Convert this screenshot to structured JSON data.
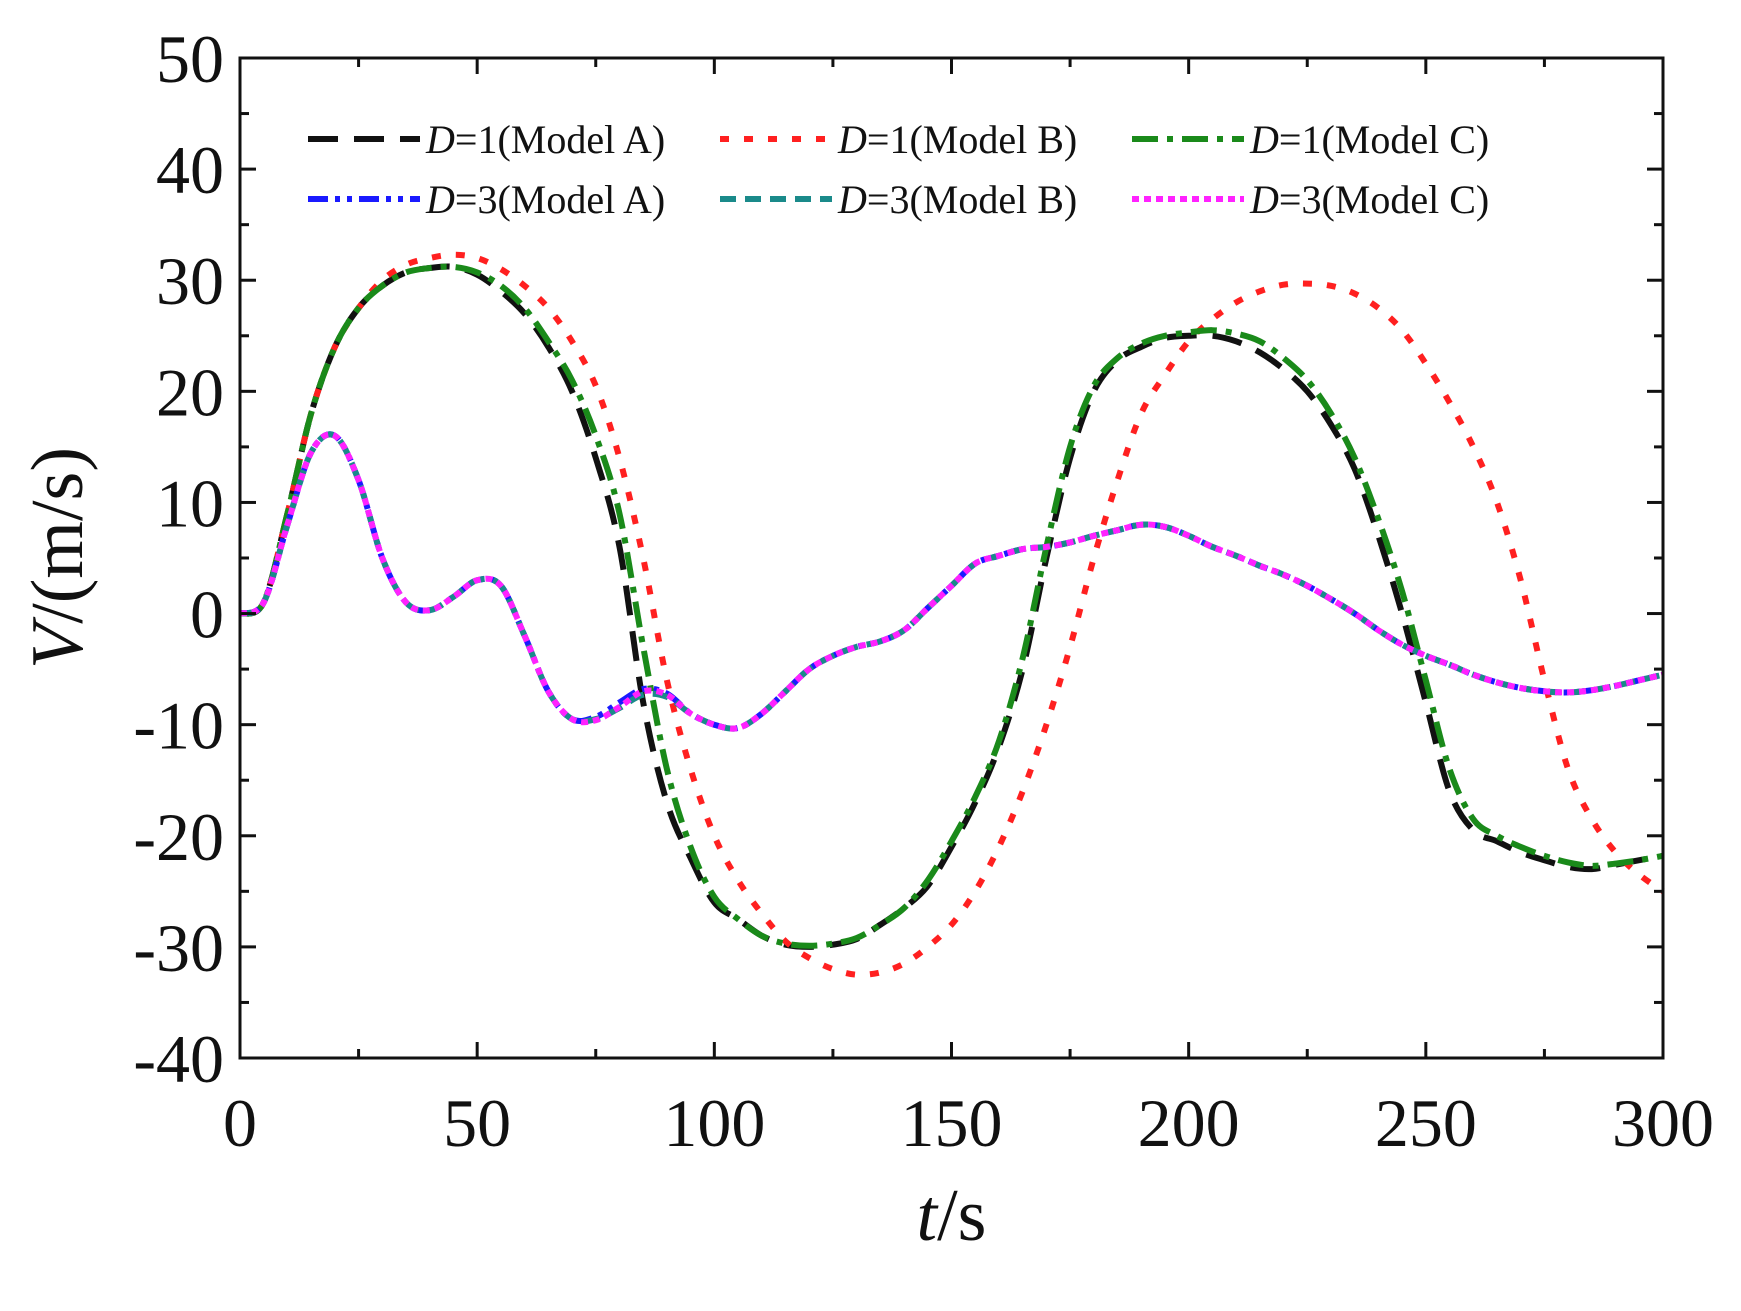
{
  "chart_data": {
    "type": "line",
    "title": "",
    "x_axis": {
      "var": "t",
      "unit": "/s",
      "lim": [
        0,
        300
      ],
      "ticks": [
        0,
        50,
        100,
        150,
        200,
        250,
        300
      ],
      "tick_labels": [
        "0",
        "50",
        "100",
        "150",
        "200",
        "250",
        "300"
      ]
    },
    "y_axis": {
      "var": "V",
      "unit": "/(m/s)",
      "lim": [
        -40,
        50
      ],
      "ticks": [
        -40,
        -30,
        -20,
        -10,
        0,
        10,
        20,
        30,
        40,
        50
      ],
      "tick_labels": [
        "-40",
        "-30",
        "-20",
        "-10",
        "0",
        "10",
        "20",
        "30",
        "40",
        "50"
      ]
    },
    "grid": false,
    "legend_position": "top",
    "series": [
      {
        "name": "D=1(Model A)",
        "legend_var": "D",
        "legend_rest": "=1(Model A)",
        "color": "#111111",
        "dash": "long-dash",
        "x": [
          0,
          5,
          10,
          15,
          20,
          25,
          30,
          35,
          40,
          45,
          50,
          55,
          60,
          65,
          70,
          75,
          80,
          85,
          90,
          95,
          100,
          105,
          110,
          115,
          120,
          125,
          130,
          135,
          140,
          145,
          150,
          155,
          160,
          165,
          170,
          175,
          180,
          185,
          190,
          195,
          200,
          205,
          210,
          215,
          220,
          225,
          230,
          235,
          240,
          245,
          250,
          255,
          260,
          265,
          270,
          275,
          280,
          285,
          290,
          295,
          300
        ],
        "y": [
          0,
          1,
          9,
          18,
          24,
          27.5,
          29.5,
          30.7,
          31.1,
          31.2,
          30.5,
          29,
          27,
          24,
          20,
          14,
          6,
          -8,
          -17,
          -22,
          -26,
          -27.5,
          -29,
          -29.8,
          -30,
          -29.8,
          -29.3,
          -28,
          -26.5,
          -24.5,
          -21,
          -17,
          -12,
          -5,
          5,
          14,
          20,
          22.8,
          24,
          24.8,
          25,
          25,
          24.5,
          23.5,
          22,
          20,
          17,
          13,
          7,
          0,
          -8,
          -16,
          -19.5,
          -20.5,
          -21.5,
          -22.2,
          -22.8,
          -23,
          -22.6,
          -22.2,
          -21.8
        ]
      },
      {
        "name": "D=1(Model B)",
        "legend_var": "D",
        "legend_rest": "=1(Model B)",
        "color": "#ff2020",
        "dash": "dots",
        "x": [
          0,
          5,
          10,
          15,
          20,
          25,
          30,
          35,
          40,
          45,
          50,
          55,
          60,
          65,
          70,
          75,
          80,
          85,
          90,
          95,
          100,
          105,
          110,
          115,
          120,
          125,
          130,
          135,
          140,
          145,
          150,
          155,
          160,
          165,
          170,
          175,
          180,
          185,
          190,
          195,
          200,
          205,
          210,
          215,
          220,
          225,
          230,
          235,
          240,
          245,
          250,
          255,
          260,
          265,
          270,
          275,
          280,
          285,
          290,
          295,
          300
        ],
        "y": [
          0,
          1,
          9,
          18,
          24,
          27.5,
          30,
          31.4,
          32,
          32.3,
          32,
          31,
          29.5,
          27.5,
          24.5,
          20.5,
          14,
          5,
          -6,
          -14,
          -20,
          -24,
          -27,
          -29.5,
          -31,
          -32,
          -32.5,
          -32.3,
          -31.5,
          -30,
          -28,
          -25,
          -21,
          -16,
          -10,
          -3,
          5,
          12,
          18,
          21.5,
          24.5,
          26.5,
          28,
          29,
          29.6,
          29.7,
          29.5,
          28.8,
          27.5,
          25.5,
          22.5,
          19,
          15,
          10,
          3,
          -6,
          -14,
          -18.5,
          -21.5,
          -23.5,
          -25
        ]
      },
      {
        "name": "D=1(Model C)",
        "legend_var": "D",
        "legend_rest": "=1(Model C)",
        "color": "#1a8a1a",
        "dash": "dash-dot",
        "x": [
          0,
          5,
          10,
          15,
          20,
          25,
          30,
          35,
          40,
          45,
          50,
          55,
          60,
          65,
          70,
          75,
          80,
          85,
          90,
          95,
          100,
          105,
          110,
          115,
          120,
          125,
          130,
          135,
          140,
          145,
          150,
          155,
          160,
          165,
          170,
          175,
          180,
          185,
          190,
          195,
          200,
          205,
          210,
          215,
          220,
          225,
          230,
          235,
          240,
          245,
          250,
          255,
          260,
          265,
          270,
          275,
          280,
          285,
          290,
          295,
          300
        ],
        "y": [
          0,
          1,
          9,
          18,
          24,
          27.5,
          29.5,
          30.7,
          31.1,
          31.2,
          30.7,
          29.5,
          27.5,
          24.5,
          21,
          16,
          9,
          -3,
          -14,
          -21,
          -25.5,
          -27.5,
          -29,
          -29.7,
          -29.9,
          -29.7,
          -29.2,
          -28,
          -26.5,
          -24,
          -20.5,
          -16.5,
          -11.5,
          -4,
          6,
          15,
          20.5,
          23,
          24.3,
          25,
          25.3,
          25.5,
          25.2,
          24.5,
          23,
          21,
          18,
          14,
          8.5,
          2,
          -6,
          -14,
          -18.5,
          -20,
          -21,
          -21.8,
          -22.4,
          -22.7,
          -22.5,
          -22.2,
          -21.8
        ]
      },
      {
        "name": "D=3(Model A)",
        "legend_var": "D",
        "legend_rest": "=3(Model A)",
        "color": "#1a1aff",
        "dash": "dash-dot-dot",
        "x": [
          0,
          5,
          10,
          15,
          20,
          25,
          30,
          35,
          40,
          45,
          50,
          55,
          60,
          65,
          70,
          75,
          80,
          85,
          90,
          95,
          100,
          105,
          110,
          115,
          120,
          125,
          130,
          135,
          140,
          145,
          150,
          155,
          160,
          165,
          170,
          175,
          180,
          185,
          190,
          195,
          200,
          205,
          210,
          215,
          220,
          225,
          230,
          235,
          240,
          245,
          250,
          255,
          260,
          265,
          270,
          275,
          280,
          285,
          290,
          295,
          300
        ],
        "y": [
          0,
          1,
          8,
          14.5,
          16,
          12,
          5,
          1,
          0.3,
          1.5,
          3,
          2.5,
          -2,
          -7,
          -9.5,
          -9.3,
          -8,
          -6.8,
          -7.2,
          -9,
          -10,
          -10.3,
          -9,
          -7,
          -5,
          -3.8,
          -3,
          -2.5,
          -1.5,
          0.5,
          2.5,
          4.5,
          5.2,
          5.8,
          6,
          6.4,
          7,
          7.5,
          8,
          7.8,
          7,
          6,
          5.2,
          4.3,
          3.5,
          2.5,
          1.3,
          0,
          -1.5,
          -2.8,
          -3.8,
          -4.6,
          -5.5,
          -6.2,
          -6.7,
          -7,
          -7.1,
          -6.9,
          -6.5,
          -6,
          -5.5
        ]
      },
      {
        "name": "D=3(Model B)",
        "legend_var": "D",
        "legend_rest": "=3(Model B)",
        "color": "#1a8a8a",
        "dash": "dash",
        "x": [
          0,
          5,
          10,
          15,
          20,
          25,
          30,
          35,
          40,
          45,
          50,
          55,
          60,
          65,
          70,
          75,
          80,
          85,
          90,
          95,
          100,
          105,
          110,
          115,
          120,
          125,
          130,
          135,
          140,
          145,
          150,
          155,
          160,
          165,
          170,
          175,
          180,
          185,
          190,
          195,
          200,
          205,
          210,
          215,
          220,
          225,
          230,
          235,
          240,
          245,
          250,
          255,
          260,
          265,
          270,
          275,
          280,
          285,
          290,
          295,
          300
        ],
        "y": [
          0,
          1,
          8,
          14.5,
          16,
          12,
          5,
          1,
          0.3,
          1.5,
          3,
          2.5,
          -2,
          -7,
          -9.5,
          -9.5,
          -8.5,
          -7.3,
          -7.5,
          -9,
          -10,
          -10.3,
          -9,
          -7,
          -5,
          -3.8,
          -3,
          -2.5,
          -1.5,
          0.5,
          2.5,
          4.5,
          5.2,
          5.8,
          6,
          6.4,
          7,
          7.5,
          8,
          7.8,
          7,
          6,
          5.2,
          4.3,
          3.5,
          2.5,
          1.3,
          0,
          -1.5,
          -2.8,
          -3.8,
          -4.6,
          -5.5,
          -6.2,
          -6.7,
          -7,
          -7.1,
          -6.9,
          -6.5,
          -6,
          -5.5
        ]
      },
      {
        "name": "D=3(Model C)",
        "legend_var": "D",
        "legend_rest": "=3(Model C)",
        "color": "#ff22ff",
        "dash": "short-dots",
        "x": [
          0,
          5,
          10,
          15,
          20,
          25,
          30,
          35,
          40,
          45,
          50,
          55,
          60,
          65,
          70,
          75,
          80,
          85,
          90,
          95,
          100,
          105,
          110,
          115,
          120,
          125,
          130,
          135,
          140,
          145,
          150,
          155,
          160,
          165,
          170,
          175,
          180,
          185,
          190,
          195,
          200,
          205,
          210,
          215,
          220,
          225,
          230,
          235,
          240,
          245,
          250,
          255,
          260,
          265,
          270,
          275,
          280,
          285,
          290,
          295,
          300
        ],
        "y": [
          0,
          1,
          8,
          14.5,
          16,
          12,
          5,
          1,
          0.3,
          1.5,
          3,
          2.5,
          -2,
          -7,
          -9.5,
          -9.6,
          -8.4,
          -7,
          -7.3,
          -9,
          -10,
          -10.3,
          -9,
          -7,
          -5,
          -3.8,
          -3,
          -2.5,
          -1.5,
          0.5,
          2.5,
          4.5,
          5.2,
          5.8,
          6,
          6.4,
          7,
          7.5,
          8,
          7.8,
          7,
          6,
          5.2,
          4.3,
          3.5,
          2.5,
          1.3,
          0,
          -1.5,
          -2.8,
          -3.8,
          -4.6,
          -5.5,
          -6.2,
          -6.7,
          -7,
          -7.1,
          -6.9,
          -6.5,
          -6,
          -5.5
        ]
      }
    ]
  }
}
